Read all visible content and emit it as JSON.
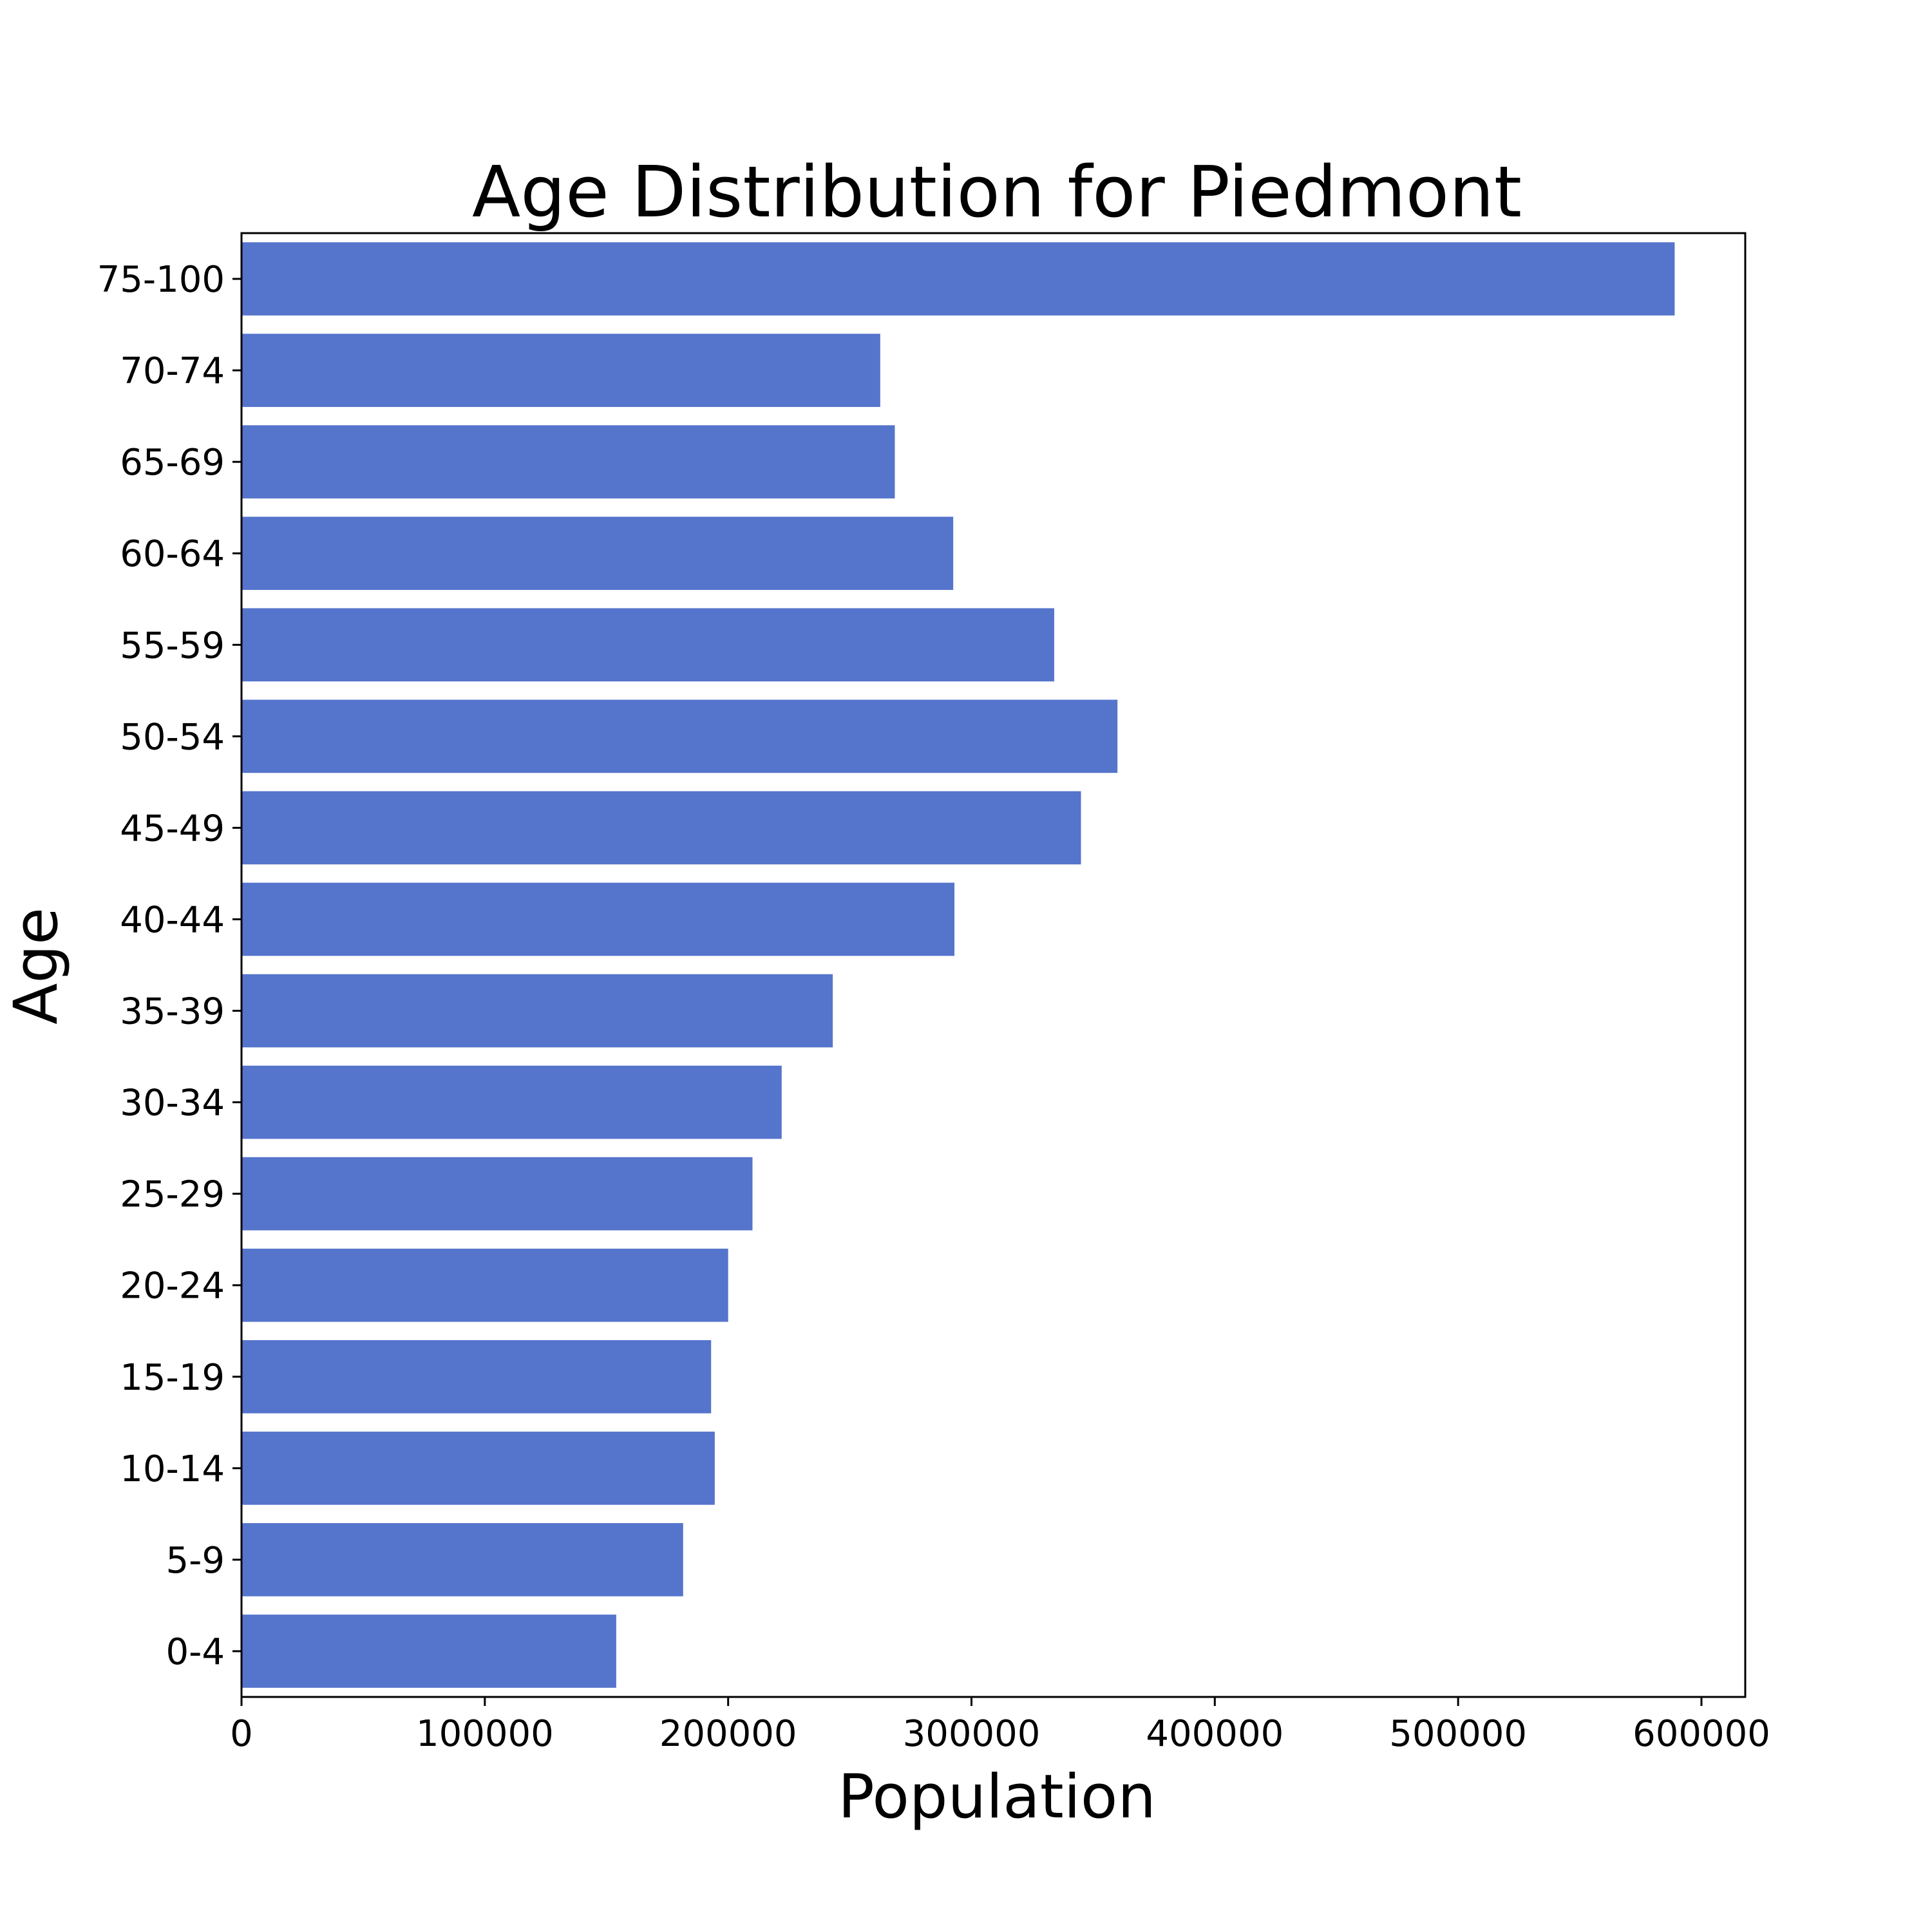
{
  "chart_data": {
    "type": "bar",
    "orientation": "horizontal",
    "title": "Age Distribution for Piedmont",
    "xlabel": "Population",
    "ylabel": "Age",
    "categories": [
      "0-4",
      "5-9",
      "10-14",
      "15-19",
      "20-24",
      "25-29",
      "30-34",
      "35-39",
      "40-44",
      "45-49",
      "50-54",
      "55-59",
      "60-64",
      "65-69",
      "70-74",
      "75-100"
    ],
    "values": [
      154000,
      181500,
      194500,
      193000,
      200000,
      210000,
      222000,
      243000,
      293000,
      345000,
      360000,
      334000,
      292500,
      268500,
      262500,
      589000
    ],
    "xticks": [
      "0",
      "100000",
      "200000",
      "300000",
      "400000",
      "500000",
      "600000"
    ],
    "xlim": [
      0,
      618000
    ],
    "bar_color": "#5574cc",
    "grid": false
  }
}
